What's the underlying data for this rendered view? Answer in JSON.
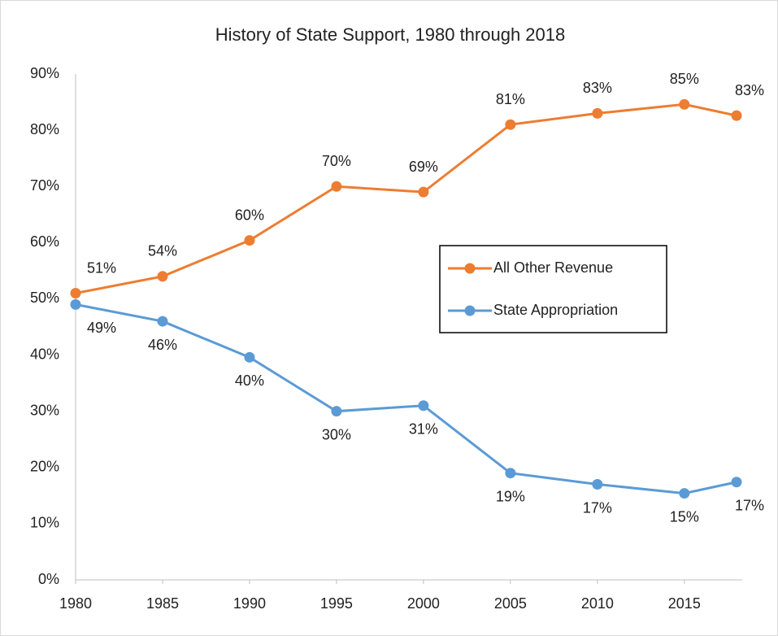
{
  "chart_data": {
    "type": "line",
    "title": "History of State Support, 1980 through 2018",
    "x": [
      1980,
      1985,
      1990,
      1995,
      2000,
      2005,
      2010,
      2015,
      2018
    ],
    "series": [
      {
        "name": "All Other Revenue",
        "color": "#ed7d31",
        "values": [
          51,
          54,
          60.4,
          70,
          69,
          81,
          83,
          84.6,
          82.6
        ],
        "value_labels": [
          "51%",
          "54%",
          "60%",
          "70%",
          "69%",
          "81%",
          "83%",
          "85%",
          "83%"
        ]
      },
      {
        "name": "State Appropriation",
        "color": "#5b9bd5",
        "values": [
          49,
          46,
          39.6,
          30,
          31,
          19,
          17,
          15.4,
          17.4
        ],
        "value_labels": [
          "49%",
          "46%",
          "40%",
          "30%",
          "31%",
          "19%",
          "17%",
          "15%",
          "17%"
        ]
      }
    ],
    "xlim": [
      1980,
      2018
    ],
    "xticks": [
      1980,
      1985,
      1990,
      1995,
      2000,
      2005,
      2010,
      2015
    ],
    "ylim": [
      0,
      90
    ],
    "yticks": [
      {
        "value": 0,
        "label": "0%"
      },
      {
        "value": 10,
        "label": "10%"
      },
      {
        "value": 20,
        "label": "20%"
      },
      {
        "value": 30,
        "label": "30%"
      },
      {
        "value": 40,
        "label": "40%"
      },
      {
        "value": 50,
        "label": "50%"
      },
      {
        "value": 60,
        "label": "60%"
      },
      {
        "value": 70,
        "label": "70%"
      },
      {
        "value": 80,
        "label": "80%"
      },
      {
        "value": 90,
        "label": "90%"
      }
    ],
    "grid": false,
    "legend": "center-right"
  }
}
